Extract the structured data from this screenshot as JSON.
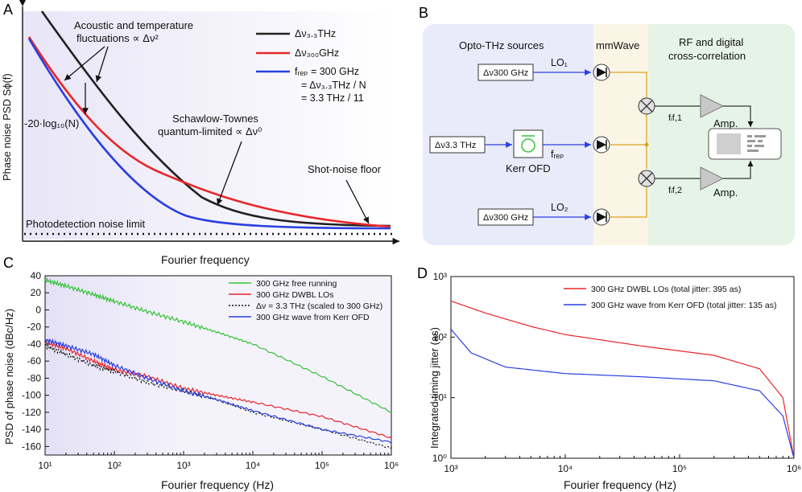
{
  "colors": {
    "black": "#222222",
    "red": "#e8262a",
    "blue": "#2a3fe0",
    "green": "#32c232",
    "gold": "#d9a520",
    "lavender": "#eef0fb",
    "cream": "#fbf6e8",
    "mint": "#e8f5ea"
  },
  "panelA": {
    "label": "A",
    "ylabel": "Phase noise PSD Sϕ(f)",
    "xlabel": "Fourier frequency",
    "annot_acoustic_1": "Acoustic and temperature",
    "annot_acoustic_2": "fluctuations ∝ Δν²",
    "annot_log": "-20·log₁₀(N)",
    "annot_schawlow_1": "Schawlow-Townes",
    "annot_schawlow_2": "quantum-limited ∝ Δν⁰",
    "annot_shot": "Shot-noise floor",
    "annot_photo": "Photodetection noise limit",
    "legend": [
      "Δν₃.₃THz",
      "Δν₃₀₀GHz",
      "fᵣₑₚ = 300 GHz"
    ],
    "legend_eq_1": "= Δν₃.₃THz / N",
    "legend_eq_2": "= 3.3 THz / 11"
  },
  "panelB": {
    "label": "B",
    "header_sources": "Opto-THz sources",
    "header_mmwave": "mmWave",
    "header_rf_1": "RF and digital",
    "header_rf_2": "cross-correlation",
    "box_lo_top": "Δν300 GHz",
    "box_mid": "Δν3.3 THz",
    "box_lo_bottom": "Δν300 GHz",
    "lo1": "LO₁",
    "lo2": "LO₂",
    "kerr": "Kerr OFD",
    "frep": "fᵣₑₚ",
    "fif1": "fᵢf,1",
    "fif2": "fᵢf,2",
    "amp": "Amp."
  },
  "panelC": {
    "label": "C",
    "ylabel": "PSD of phase noise (dBc/Hz)",
    "xlabel": "Fourier frequency (Hz)"
  },
  "panelD": {
    "label": "D",
    "ylabel": "Integrated timing jitter (as)",
    "xlabel": "Fourier frequency (Hz)"
  },
  "chart_data": [
    {
      "panel": "C",
      "type": "line",
      "xlabel": "Fourier frequency (Hz)",
      "ylabel": "PSD of phase noise (dBc/Hz)",
      "xscale": "log",
      "xlim": [
        10,
        1000000
      ],
      "ylim": [
        -170,
        40
      ],
      "xticks": [
        "10¹",
        "10²",
        "10³",
        "10⁴",
        "10⁵",
        "10⁶"
      ],
      "yticks": [
        "40",
        "20",
        "0",
        "-20",
        "-40",
        "-60",
        "-80",
        "-100",
        "-120",
        "-140",
        "-160"
      ],
      "legend_position": "top-right",
      "series": [
        {
          "name": "300 GHz free running",
          "color": "#32c232",
          "x": [
            10,
            20,
            50,
            100,
            300,
            1000,
            3000,
            10000,
            100000,
            1000000
          ],
          "y": [
            35,
            28,
            18,
            10,
            -2,
            -14,
            -26,
            -40,
            -78,
            -120
          ]
        },
        {
          "name": "300 GHz DWBL LOs",
          "color": "#e8262a",
          "x": [
            10,
            20,
            50,
            100,
            300,
            1000,
            3000,
            10000,
            100000,
            1000000
          ],
          "y": [
            -38,
            -45,
            -60,
            -70,
            -78,
            -92,
            -100,
            -108,
            -125,
            -150
          ]
        },
        {
          "name": "Δν = 3.3 THz (scaled to 300 GHz)",
          "color": "#111111",
          "x": [
            10,
            20,
            50,
            100,
            300,
            1000,
            3000,
            10000,
            100000,
            1000000
          ],
          "y": [
            -42,
            -52,
            -65,
            -72,
            -85,
            -95,
            -105,
            -120,
            -140,
            -162
          ]
        },
        {
          "name": "300 GHz wave from Kerr OFD",
          "color": "#2a3fe0",
          "x": [
            10,
            20,
            50,
            100,
            300,
            1000,
            3000,
            10000,
            100000,
            1000000
          ],
          "y": [
            -35,
            -42,
            -52,
            -65,
            -80,
            -95,
            -105,
            -118,
            -140,
            -155
          ]
        }
      ]
    },
    {
      "panel": "D",
      "type": "line",
      "xlabel": "Fourier frequency (Hz)",
      "ylabel": "Integrated timing jitter (as)",
      "xscale": "log",
      "yscale": "log",
      "xlim": [
        1000,
        1000000
      ],
      "ylim": [
        1,
        1000
      ],
      "xticks": [
        "10³",
        "10⁴",
        "10⁵",
        "10⁶"
      ],
      "yticks": [
        "10³",
        "10²",
        "10¹",
        "10⁰"
      ],
      "legend_position": "top-right",
      "series": [
        {
          "name": "300 GHz DWBL LOs (total jitter: 395 as)",
          "color": "#e8262a",
          "x": [
            1000,
            2000,
            5000,
            10000,
            50000,
            200000,
            500000,
            800000,
            1000000
          ],
          "y": [
            395,
            250,
            150,
            110,
            70,
            50,
            30,
            10,
            1
          ]
        },
        {
          "name": "300 GHz wave from Kerr OFD (total jitter: 135 as)",
          "color": "#2a3fe0",
          "x": [
            1000,
            1500,
            3000,
            10000,
            50000,
            200000,
            500000,
            800000,
            1000000
          ],
          "y": [
            135,
            55,
            32,
            25,
            22,
            19,
            13,
            5,
            1
          ]
        }
      ]
    }
  ]
}
